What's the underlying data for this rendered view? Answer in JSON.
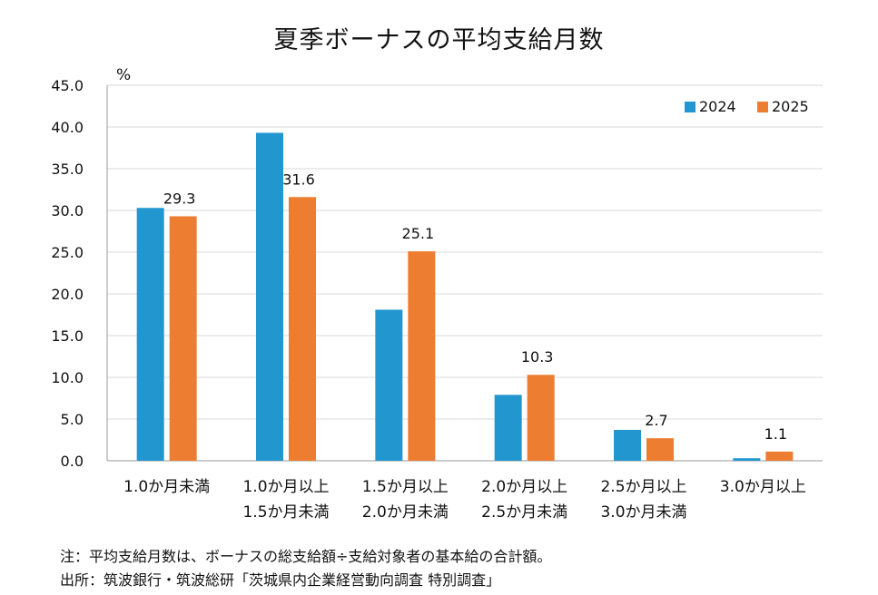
{
  "chart_data": {
    "type": "bar",
    "title": "夏季ボーナスの平均支給月数",
    "ylabel": "%",
    "xlabel": "",
    "ylim": [
      0,
      45
    ],
    "yticks": [
      "0.0",
      "5.0",
      "10.0",
      "15.0",
      "20.0",
      "25.0",
      "30.0",
      "35.0",
      "40.0",
      "45.0"
    ],
    "grid": true,
    "legend_position": "top-right",
    "categories": [
      [
        "1.0か月未満"
      ],
      [
        "1.0か月以上",
        "1.5か月未満"
      ],
      [
        "1.5か月以上",
        "2.0か月未満"
      ],
      [
        "2.0か月以上",
        "2.5か月未満"
      ],
      [
        "2.5か月以上",
        "3.0か月未満"
      ],
      [
        "3.0か月以上"
      ]
    ],
    "series": [
      {
        "name": "2024",
        "color": "#2196CF",
        "values": [
          30.3,
          39.3,
          18.1,
          7.9,
          3.7,
          0.3
        ],
        "labels": [
          null,
          null,
          null,
          null,
          null,
          null
        ]
      },
      {
        "name": "2025",
        "color": "#ED7D31",
        "values": [
          29.3,
          31.6,
          25.1,
          10.3,
          2.7,
          1.1
        ],
        "labels": [
          "29.3",
          "31.6",
          "25.1",
          "10.3",
          "2.7",
          "1.1"
        ]
      }
    ]
  },
  "notes": {
    "note1": "注：平均支給月数は、ボーナスの総支給額÷支給対象者の基本給の合計額。",
    "note2": "出所：筑波銀行・筑波総研「茨城県内企業経営動向調査 特別調査」"
  }
}
